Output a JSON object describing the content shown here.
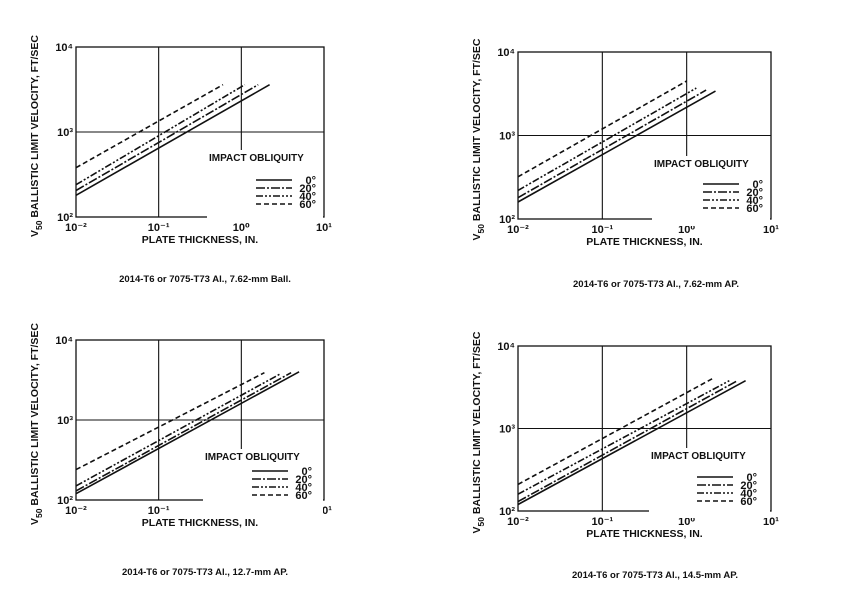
{
  "legend_title": "IMPACT OBLIQUITY",
  "legend_entries": [
    "0°",
    "20°",
    "40°",
    "60°"
  ],
  "series_dash": [
    "",
    "9 2 2 2",
    "7 2 2 2 2 2",
    "5 3"
  ],
  "ink_color": "#111111",
  "chart_data": [
    {
      "type": "line",
      "caption": "2014-T6 or 7075-T73 Al., 7.62-mm Ball.",
      "xlabel": "PLATE THICKNESS, IN.",
      "ylabel": "V50 BALLISTIC LIMIT VELOCITY, FT/SEC",
      "xscale": "log",
      "yscale": "log",
      "xlim": [
        0.01,
        10
      ],
      "ylim": [
        100,
        10000
      ],
      "xticks": [
        "10⁻²",
        "10⁻¹",
        "10⁰",
        "10¹"
      ],
      "yticks": [
        "10⁴",
        "10³",
        "10²"
      ],
      "series": [
        {
          "name": "0°",
          "points": [
            [
              0.01,
              180
            ],
            [
              2.2,
              3600
            ]
          ]
        },
        {
          "name": "20°",
          "points": [
            [
              0.01,
              205
            ],
            [
              1.6,
              3600
            ]
          ]
        },
        {
          "name": "40°",
          "points": [
            [
              0.01,
              240
            ],
            [
              1.1,
              3600
            ]
          ]
        },
        {
          "name": "60°",
          "points": [
            [
              0.01,
              380
            ],
            [
              0.6,
              3600
            ]
          ]
        }
      ]
    },
    {
      "type": "line",
      "caption": "2014-T6 or 7075-T73 Al., 7.62-mm AP.",
      "xlabel": "PLATE THICKNESS, IN.",
      "ylabel": "V50 BALLISTIC LIMIT VELOCITY, FT/SEC",
      "xscale": "log",
      "yscale": "log",
      "xlim": [
        0.01,
        10
      ],
      "ylim": [
        100,
        10000
      ],
      "xticks": [
        "10⁻²",
        "10⁻¹",
        "10⁰",
        "10¹"
      ],
      "yticks": [
        "10⁴",
        "10³",
        "10²"
      ],
      "series": [
        {
          "name": "0°",
          "points": [
            [
              0.01,
              160
            ],
            [
              2.2,
              3400
            ]
          ]
        },
        {
          "name": "20°",
          "points": [
            [
              0.01,
              180
            ],
            [
              1.7,
              3500
            ]
          ]
        },
        {
          "name": "40°",
          "points": [
            [
              0.01,
              220
            ],
            [
              1.3,
              3700
            ]
          ]
        },
        {
          "name": "60°",
          "points": [
            [
              0.01,
              320
            ],
            [
              1.0,
              4500
            ]
          ]
        }
      ]
    },
    {
      "type": "line",
      "caption": "2014-T6 or 7075-T73 Al., 12.7-mm AP.",
      "xlabel": "PLATE THICKNESS, IN.",
      "ylabel": "V50 BALLISTIC LIMIT VELOCITY, FT/SEC",
      "xscale": "log",
      "yscale": "log",
      "xlim": [
        0.01,
        10
      ],
      "ylim": [
        100,
        10000
      ],
      "xticks": [
        "10⁻²",
        "10⁻¹",
        "10⁰",
        "10¹"
      ],
      "yticks": [
        "10⁴",
        "10³",
        "10²"
      ],
      "series": [
        {
          "name": "0°",
          "points": [
            [
              0.01,
              120
            ],
            [
              5.0,
              4000
            ]
          ]
        },
        {
          "name": "20°",
          "points": [
            [
              0.01,
              130
            ],
            [
              4.0,
              3900
            ]
          ]
        },
        {
          "name": "40°",
          "points": [
            [
              0.01,
              150
            ],
            [
              3.0,
              3800
            ]
          ]
        },
        {
          "name": "60°",
          "points": [
            [
              0.01,
              240
            ],
            [
              1.9,
              3900
            ]
          ]
        }
      ]
    },
    {
      "type": "line",
      "caption": "2014-T6 or 7075-T73 Al., 14.5-mm AP.",
      "xlabel": "PLATE THICKNESS, IN.",
      "ylabel": "V50 BALLISTIC LIMIT VELOCITY, FT/SEC",
      "xscale": "log",
      "yscale": "log",
      "xlim": [
        0.01,
        10
      ],
      "ylim": [
        100,
        10000
      ],
      "xticks": [
        "10⁻²",
        "10⁻¹",
        "10⁰",
        "10¹"
      ],
      "yticks": [
        "10⁴",
        "10³",
        "10²"
      ],
      "series": [
        {
          "name": "0°",
          "points": [
            [
              0.01,
              120
            ],
            [
              5.0,
              3800
            ]
          ]
        },
        {
          "name": "20°",
          "points": [
            [
              0.01,
              130
            ],
            [
              4.0,
              3800
            ]
          ]
        },
        {
          "name": "40°",
          "points": [
            [
              0.01,
              160
            ],
            [
              3.2,
              3800
            ]
          ]
        },
        {
          "name": "60°",
          "points": [
            [
              0.01,
              210
            ],
            [
              2.0,
              4000
            ]
          ]
        }
      ]
    }
  ]
}
